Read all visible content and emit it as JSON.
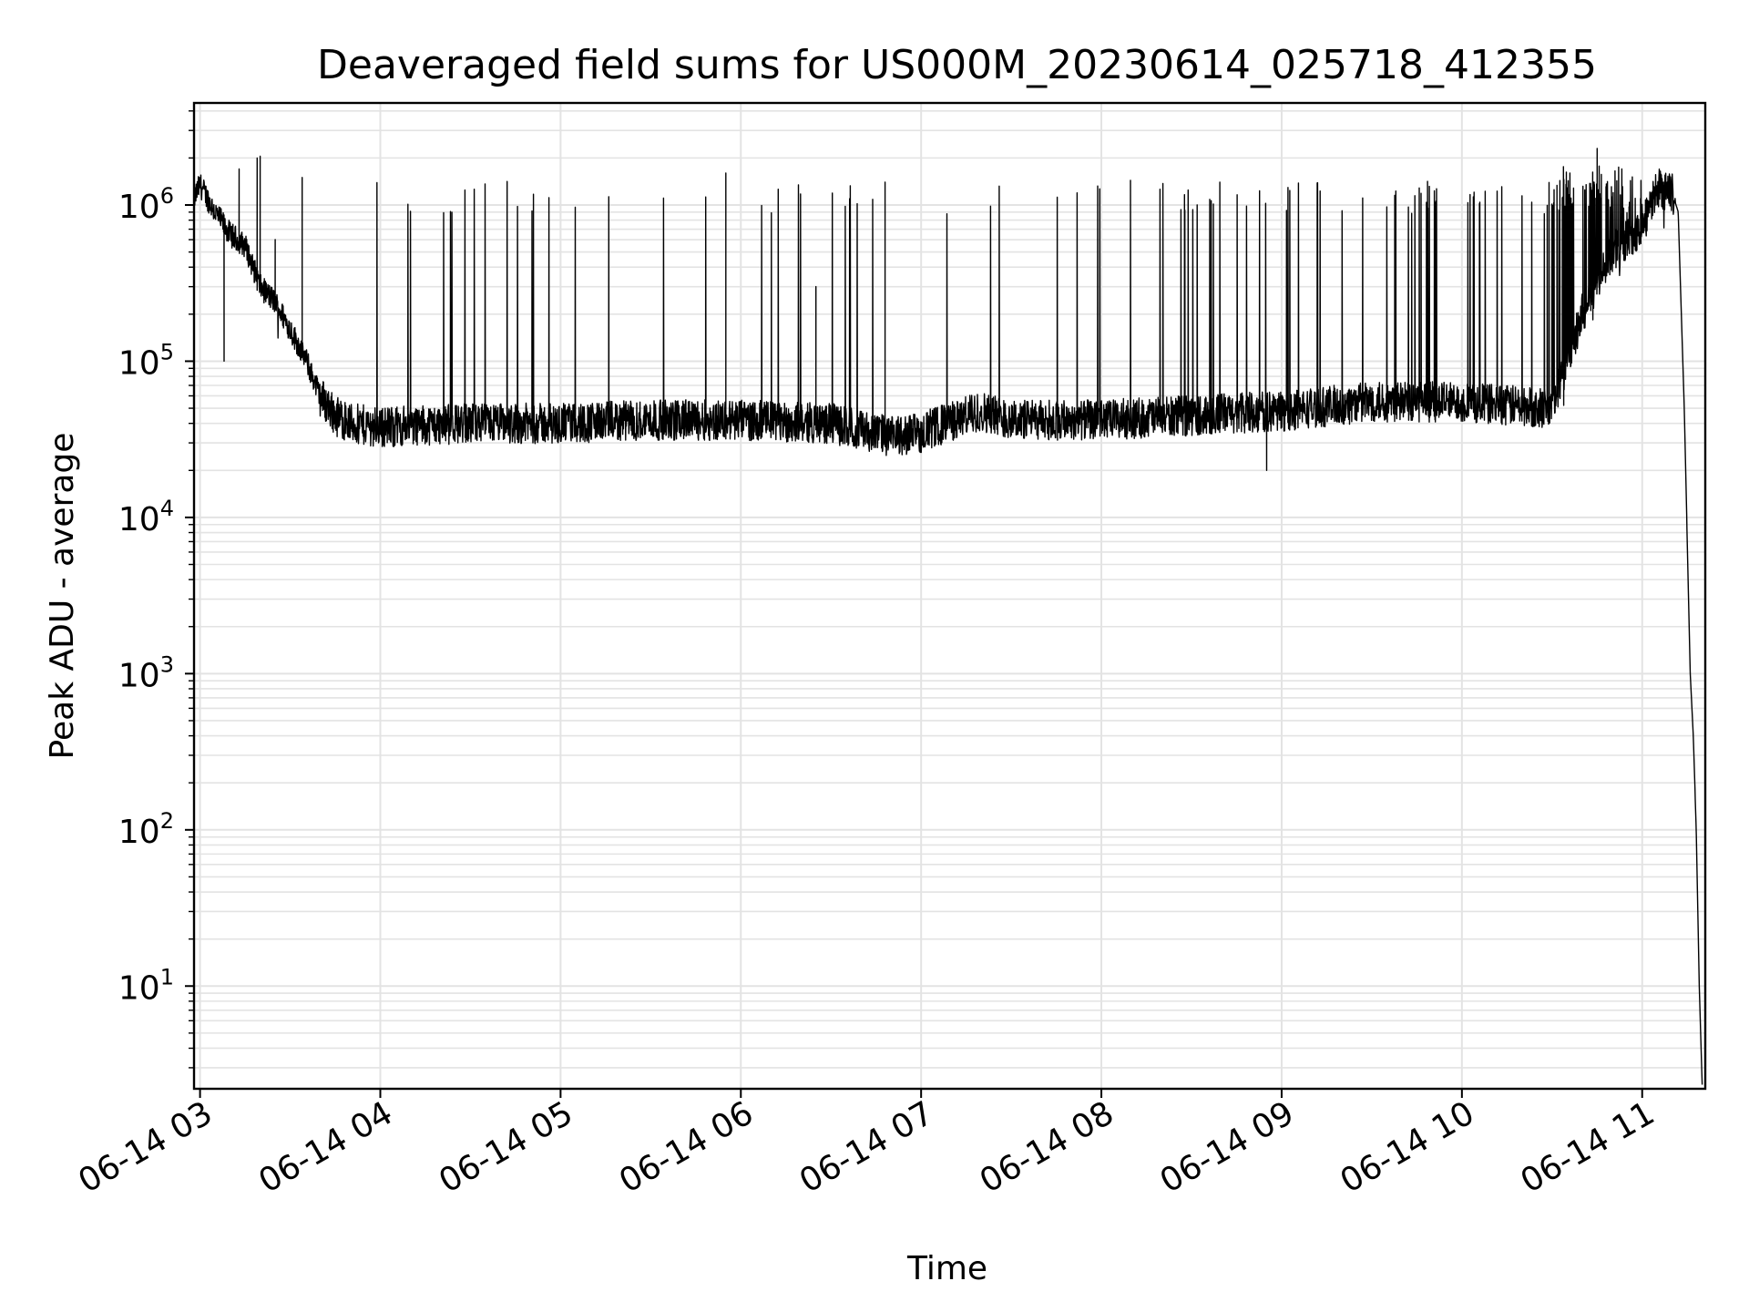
{
  "chart_data": {
    "type": "line",
    "title": "Deaveraged field sums for US000M_20230614_025718_412355",
    "xlabel": "Time",
    "ylabel": "Peak ADU - average",
    "yscale": "log",
    "ylim": [
      2.2,
      4500000
    ],
    "xlim": [
      "06-14 02:58",
      "06-14 11:21"
    ],
    "grid": true,
    "line_color": "#000000",
    "grid_color": "#e3e3e3",
    "x_ticks": [
      "06-14 03",
      "06-14 04",
      "06-14 05",
      "06-14 06",
      "06-14 07",
      "06-14 08",
      "06-14 09",
      "06-14 10",
      "06-14 11"
    ],
    "y_ticks": [
      {
        "base": "10",
        "exp": "1",
        "value": 10
      },
      {
        "base": "10",
        "exp": "2",
        "value": 100
      },
      {
        "base": "10",
        "exp": "3",
        "value": 1000
      },
      {
        "base": "10",
        "exp": "4",
        "value": 10000
      },
      {
        "base": "10",
        "exp": "5",
        "value": 100000
      },
      {
        "base": "10",
        "exp": "6",
        "value": 1000000
      }
    ],
    "series": [
      {
        "x": [
          "06-14 02:58",
          "06-14 03:00",
          "06-14 03:05",
          "06-14 03:10",
          "06-14 03:15",
          "06-14 03:20",
          "06-14 03:25",
          "06-14 03:30",
          "06-14 03:35",
          "06-14 03:40",
          "06-14 03:45",
          "06-14 03:50",
          "06-14 04:00",
          "06-14 04:30",
          "06-14 05:00",
          "06-14 05:30",
          "06-14 06:00",
          "06-14 06:30",
          "06-14 06:50",
          "06-14 07:00",
          "06-14 07:20",
          "06-14 07:30",
          "06-14 08:00",
          "06-14 08:30",
          "06-14 09:00",
          "06-14 09:30",
          "06-14 10:00",
          "06-14 10:30",
          "06-14 10:40",
          "06-14 10:50",
          "06-14 11:00",
          "06-14 11:05",
          "06-14 11:10",
          "06-14 11:12",
          "06-14 11:14",
          "06-14 11:16",
          "06-14 11:17",
          "06-14 11:18",
          "06-14 11:19",
          "06-14 11:20"
        ],
        "y": [
          1100000,
          1350000,
          900000,
          650000,
          550000,
          300000,
          240000,
          160000,
          105000,
          60000,
          45000,
          40000,
          38000,
          40000,
          40000,
          42000,
          42000,
          40000,
          33000,
          35000,
          48000,
          42000,
          42000,
          45000,
          48000,
          55000,
          55000,
          50000,
          200000,
          500000,
          700000,
          1300000,
          1200000,
          900000,
          50000,
          1000,
          400,
          100,
          10,
          2.2
        ]
      }
    ],
    "spikes": [
      {
        "x": "06-14 03:08",
        "y": 100000
      },
      {
        "x": "06-14 03:13",
        "y": 1700000
      },
      {
        "x": "06-14 03:19",
        "y": 2000000
      },
      {
        "x": "06-14 03:20",
        "y": 2050000
      },
      {
        "x": "06-14 03:25",
        "y": 600000
      },
      {
        "x": "06-14 03:34",
        "y": 1500000
      },
      {
        "x": "06-14 05:55",
        "y": 1600000
      },
      {
        "x": "06-14 06:25",
        "y": 300000
      },
      {
        "x": "06-14 06:48",
        "y": 1400000
      },
      {
        "x": "06-14 08:55",
        "y": 20000
      },
      {
        "x": "06-14 10:45",
        "y": 2300000
      }
    ]
  }
}
